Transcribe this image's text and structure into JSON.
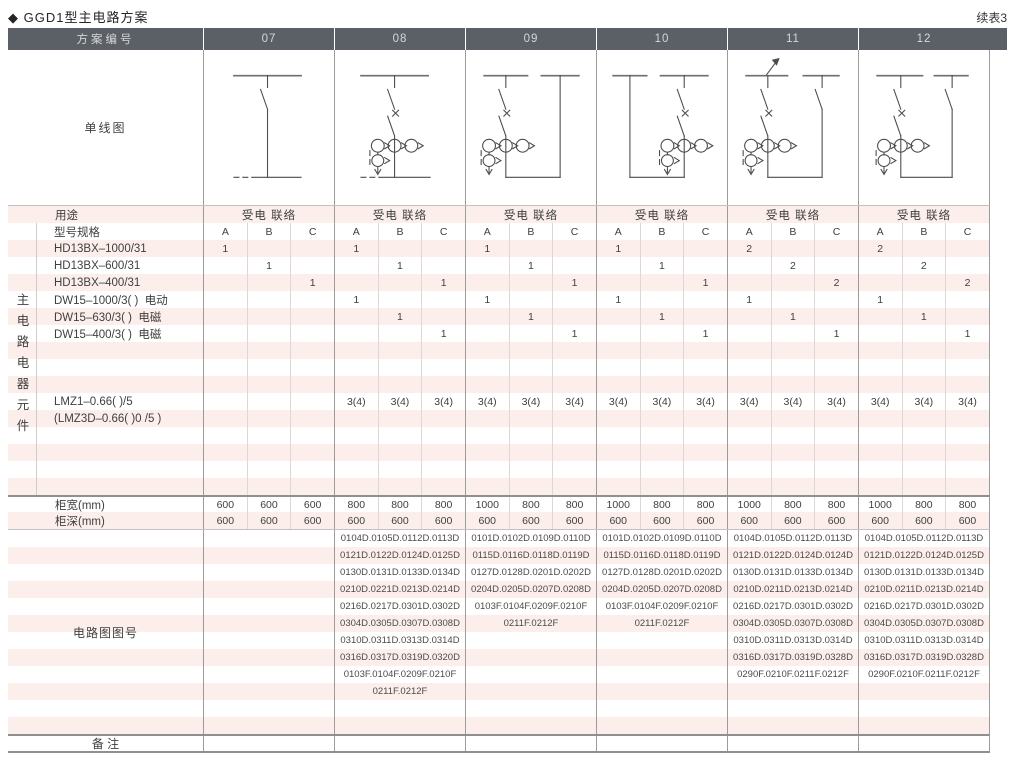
{
  "page": {
    "title": "◆ GGD1型主电路方案",
    "continued": "续表3"
  },
  "colors": {
    "header_bar": "#5b6066",
    "row_stripe": "#fcefeb"
  },
  "header": {
    "label": "方案编号",
    "schemes": [
      "07",
      "08",
      "09",
      "10",
      "11",
      "12"
    ]
  },
  "table": {
    "diagram_label": "单线图",
    "usage_row": {
      "label": "用途",
      "values": [
        "受电 联络",
        "受电 联络",
        "受电 联络",
        "受电 联络",
        "受电 联络",
        "受电 联络"
      ]
    },
    "spec_row": {
      "label": "型号规格",
      "subcols": [
        "A",
        "B",
        "C"
      ]
    },
    "side_label": "主电路电器元件",
    "device_rows": [
      {
        "label": "HD13BX–1000/31",
        "values": [
          "1",
          "",
          "",
          "1",
          "",
          "",
          "1",
          "",
          "",
          "1",
          "",
          "",
          "2",
          "",
          "",
          "2",
          "",
          ""
        ]
      },
      {
        "label": "HD13BX–600/31",
        "values": [
          "",
          "1",
          "",
          "",
          "1",
          "",
          "",
          "1",
          "",
          "",
          "1",
          "",
          "",
          "2",
          "",
          "",
          "2",
          ""
        ]
      },
      {
        "label": "HD13BX–400/31",
        "values": [
          "",
          "",
          "1",
          "",
          "",
          "1",
          "",
          "",
          "1",
          "",
          "",
          "1",
          "",
          "",
          "2",
          "",
          "",
          "2"
        ]
      },
      {
        "label": "DW15–1000/3( )  电动",
        "values": [
          "",
          "",
          "",
          "1",
          "",
          "",
          "1",
          "",
          "",
          "1",
          "",
          "",
          "1",
          "",
          "",
          "1",
          "",
          ""
        ]
      },
      {
        "label": "DW15–630/3( )  电磁",
        "values": [
          "",
          "",
          "",
          "",
          "1",
          "",
          "",
          "1",
          "",
          "",
          "1",
          "",
          "",
          "1",
          "",
          "",
          "1",
          ""
        ]
      },
      {
        "label": "DW15–400/3( )  电磁",
        "values": [
          "",
          "",
          "",
          "",
          "",
          "1",
          "",
          "",
          "1",
          "",
          "",
          "1",
          "",
          "",
          "1",
          "",
          "",
          "1"
        ]
      },
      {
        "label": "",
        "values": []
      },
      {
        "label": "",
        "values": []
      },
      {
        "label": "",
        "values": []
      },
      {
        "label": "LMZ1–0.66( )/5",
        "values": [
          "",
          "",
          "",
          "3(4)",
          "3(4)",
          "3(4)",
          "3(4)",
          "3(4)",
          "3(4)",
          "3(4)",
          "3(4)",
          "3(4)",
          "3(4)",
          "3(4)",
          "3(4)",
          "3(4)",
          "3(4)",
          "3(4)"
        ]
      },
      {
        "label": "(LMZ3D–0.66( )0 /5 )",
        "values": []
      },
      {
        "label": "",
        "values": []
      },
      {
        "label": "",
        "values": []
      },
      {
        "label": "",
        "values": []
      },
      {
        "label": "",
        "values": []
      }
    ],
    "width_row": {
      "label": "柜宽(mm)",
      "values": [
        "600",
        "600",
        "600",
        "800",
        "800",
        "800",
        "1000",
        "800",
        "800",
        "1000",
        "800",
        "800",
        "1000",
        "800",
        "800",
        "1000",
        "800",
        "800"
      ]
    },
    "depth_row": {
      "label": "柜深(mm)",
      "values": [
        "600",
        "600",
        "600",
        "600",
        "600",
        "600",
        "600",
        "600",
        "600",
        "600",
        "600",
        "600",
        "600",
        "600",
        "600",
        "600",
        "600",
        "600"
      ]
    },
    "codes": {
      "label": "电路图图号",
      "line_count": 12,
      "schemes": [
        {
          "id": "07",
          "lines": []
        },
        {
          "id": "08",
          "lines": [
            "0104D.0105D.0112D.0113D",
            "0121D.0122D.0124D.0125D",
            "0130D.0131D.0133D.0134D",
            "0210D.0221D.0213D.0214D",
            "0216D.0217D.0301D.0302D",
            "0304D.0305D.0307D.0308D",
            "0310D.0311D.0313D.0314D",
            "0316D.0317D.0319D.0320D",
            "0103F.0104F.0209F.0210F",
            "0211F.0212F"
          ]
        },
        {
          "id": "09",
          "lines": [
            "0101D.0102D.0109D.0110D",
            "0115D.0116D.0118D.0119D",
            "0127D.0128D.0201D.0202D",
            "0204D.0205D.0207D.0208D",
            "0103F.0104F.0209F.0210F",
            "0211F.0212F"
          ]
        },
        {
          "id": "10",
          "lines": [
            "0101D.0102D.0109D.0110D",
            "0115D.0116D.0118D.0119D",
            "0127D.0128D.0201D.0202D",
            "0204D.0205D.0207D.0208D",
            "0103F.0104F.0209F.0210F",
            "0211F.0212F"
          ]
        },
        {
          "id": "11",
          "lines": [
            "0104D.0105D.0112D.0113D",
            "0121D.0122D.0124D.0124D",
            "0130D.0131D.0133D.0134D",
            "0210D.0211D.0213D.0214D",
            "0216D.0217D.0301D.0302D",
            "0304D.0305D.0307D.0308D",
            "0310D.0311D.0313D.0314D",
            "0316D.0317D.0319D.0328D",
            "0290F.0210F.0211F.0212F"
          ]
        },
        {
          "id": "12",
          "lines": [
            "0104D.0105D.0112D.0113D",
            "0121D.0122D.0124D.0125D",
            "0130D.0131D.0133D.0134D",
            "0210D.0211D.0213D.0214D",
            "0216D.0217D.0301D.0302D",
            "0304D.0305D.0307D.0308D",
            "0310D.0311D.0313D.0314D",
            "0316D.0317D.0319D.0328D",
            "0290F.0210F.0211F.0212F"
          ]
        }
      ]
    },
    "remark_row": {
      "label": "备 注"
    }
  }
}
